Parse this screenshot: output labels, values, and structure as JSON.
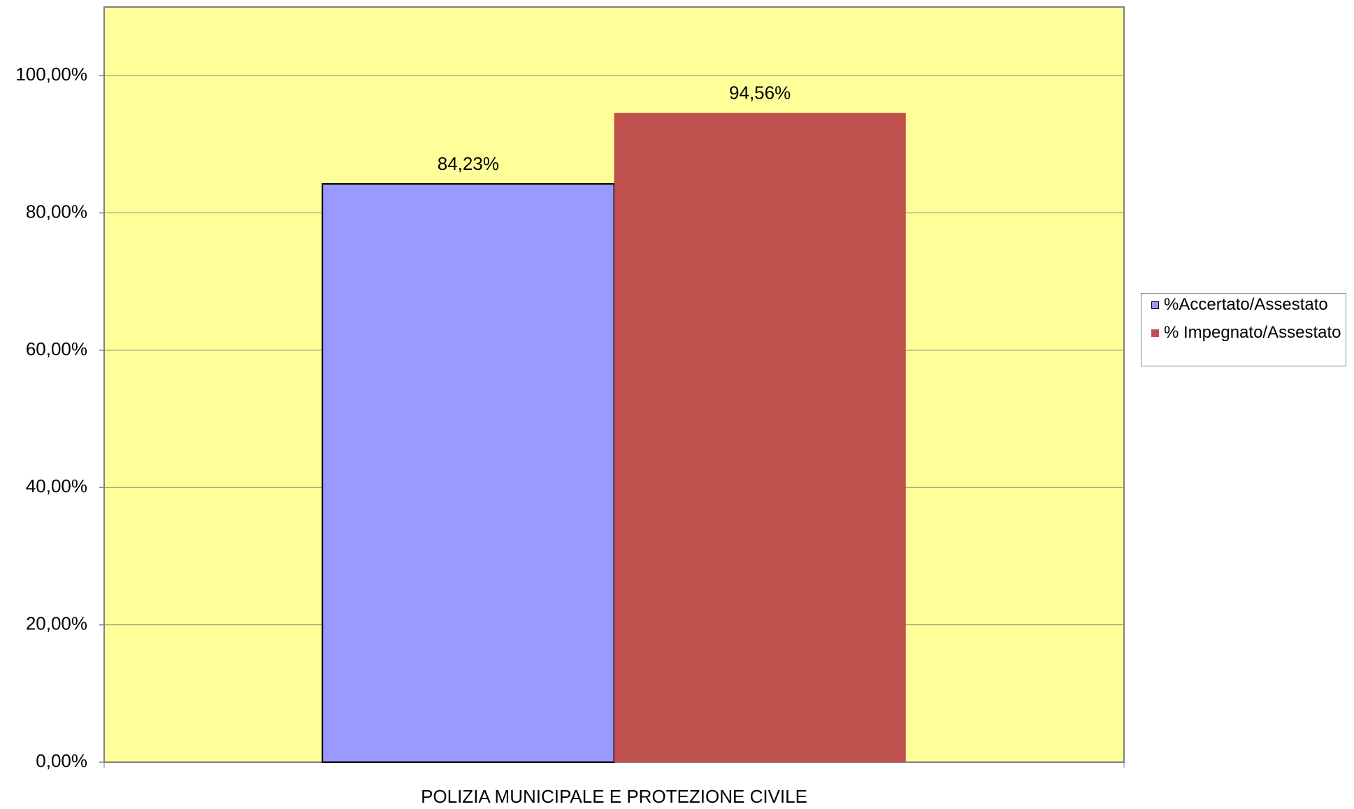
{
  "chart_data": {
    "type": "bar",
    "categories": [
      "POLIZIA MUNICIPALE E PROTEZIONE CIVILE"
    ],
    "series": [
      {
        "name": "%Accertato/Assestato",
        "color": "#9999ff",
        "values": [
          84.23
        ],
        "value_labels": [
          "84,23%"
        ]
      },
      {
        "name": "% Impegnato/Assestato",
        "color": "#c0504d",
        "values": [
          94.56
        ],
        "value_labels": [
          "94,56%"
        ]
      }
    ],
    "ylim": [
      0,
      110
    ],
    "yticks": [
      {
        "value": 0,
        "label": "0,00%"
      },
      {
        "value": 20,
        "label": "20,00%"
      },
      {
        "value": 40,
        "label": "40,00%"
      },
      {
        "value": 60,
        "label": "60,00%"
      },
      {
        "value": 80,
        "label": "80,00%"
      },
      {
        "value": 100,
        "label": "100,00%"
      }
    ],
    "grid": true,
    "legend": "right",
    "plot_background": "#ffff99"
  }
}
